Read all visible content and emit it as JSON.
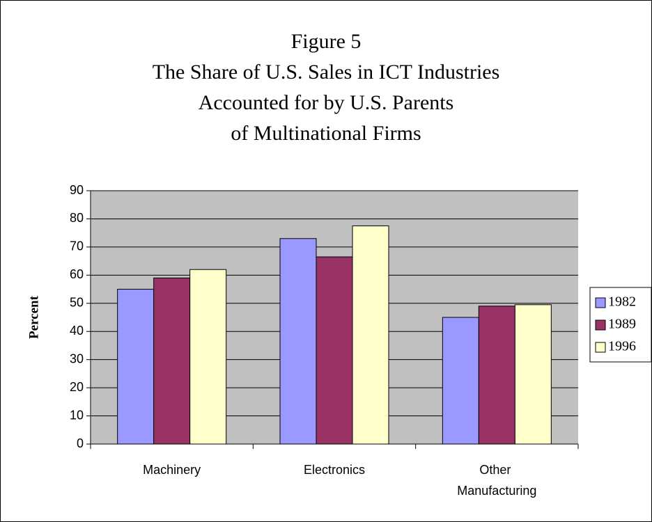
{
  "chart_data": {
    "type": "bar",
    "title": [
      "Figure 5",
      "The Share of U.S. Sales in ICT Industries",
      "Accounted for by U.S. Parents",
      "of Multinational Firms"
    ],
    "y_label": "Percent",
    "categories": [
      "Machinery",
      "Electronics",
      "Other Manufacturing"
    ],
    "series": [
      {
        "name": "1982",
        "color": "#9999ff",
        "values": [
          55,
          73,
          45
        ]
      },
      {
        "name": "1989",
        "color": "#993366",
        "values": [
          59,
          66.5,
          49
        ]
      },
      {
        "name": "1996",
        "color": "#ffffcc",
        "values": [
          62,
          77.5,
          49.5
        ]
      }
    ],
    "ylim": [
      0,
      90
    ],
    "yticks": [
      0,
      10,
      20,
      30,
      40,
      50,
      60,
      70,
      80,
      90
    ],
    "grid": true,
    "legend": "right"
  }
}
